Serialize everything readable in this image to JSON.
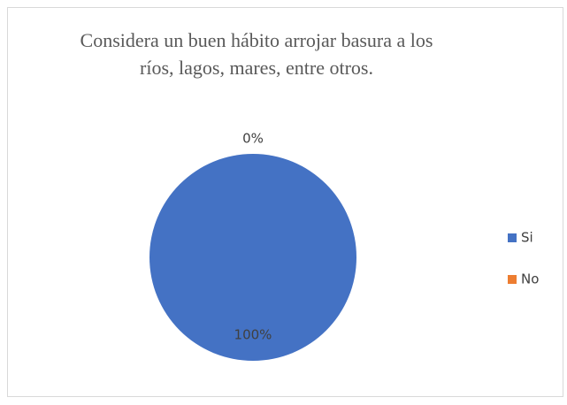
{
  "chart_data": {
    "type": "pie",
    "title": "Considera un buen hábito arrojar basura a los ríos, lagos, mares, entre otros.",
    "categories": [
      "Si",
      "No"
    ],
    "values": [
      100,
      0
    ],
    "value_labels": [
      "100%",
      "0%"
    ],
    "colors": [
      "#4472c4",
      "#ed7d31"
    ],
    "legend": "right"
  }
}
